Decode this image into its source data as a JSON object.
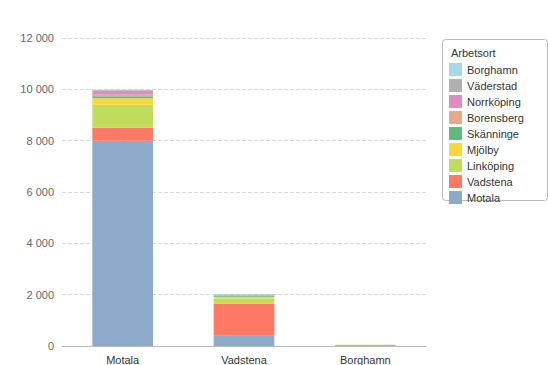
{
  "chart_data": {
    "type": "bar",
    "stacked": true,
    "grid": true,
    "legend": "top-right",
    "legend_title": "Arbetsort",
    "categories": [
      "Motala",
      "Vadstena",
      "Borghamn"
    ],
    "series": [
      {
        "name": "Motala",
        "color": "#8eaacb",
        "values": [
          8000,
          400,
          10
        ]
      },
      {
        "name": "Vadstena",
        "color": "#fd7865",
        "values": [
          500,
          1250,
          30
        ]
      },
      {
        "name": "Linköping",
        "color": "#c0dc5c",
        "values": [
          900,
          200,
          5
        ]
      },
      {
        "name": "Mjölby",
        "color": "#fcd73a",
        "values": [
          250,
          70,
          0
        ]
      },
      {
        "name": "Skänninge",
        "color": "#5fba7d",
        "values": [
          80,
          40,
          0
        ]
      },
      {
        "name": "Borensberg",
        "color": "#e8a989",
        "values": [
          60,
          10,
          0
        ]
      },
      {
        "name": "Norrköping",
        "color": "#e08cc4",
        "values": [
          150,
          20,
          0
        ]
      },
      {
        "name": "Väderstad",
        "color": "#b0b0b0",
        "values": [
          30,
          20,
          0
        ]
      },
      {
        "name": "Borghamn",
        "color": "#a8d8e8",
        "values": [
          10,
          5,
          5
        ]
      }
    ],
    "ylim": [
      0,
      12000
    ],
    "yticks": [
      0,
      {
        "value": 2000,
        "label": "2 000"
      },
      {
        "value": 4000,
        "label": "4 000"
      },
      {
        "value": 6000,
        "label": "6 000"
      },
      {
        "value": 8000,
        "label": "8 000"
      },
      {
        "value": 10000,
        "label": "10 000"
      },
      {
        "value": 12000,
        "label": "12 000"
      }
    ]
  }
}
